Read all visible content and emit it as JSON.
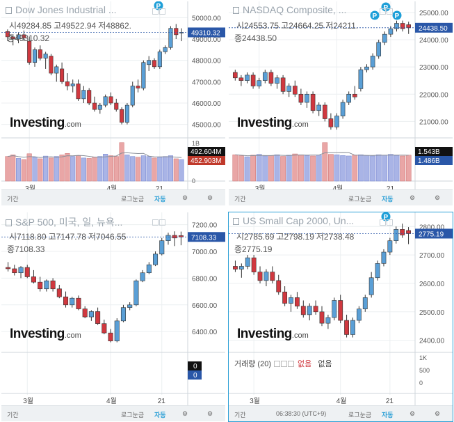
{
  "colors": {
    "up": "#5a9fd6",
    "down": "#d0383f",
    "grid": "#eceff1",
    "accent": "#2a9fd6",
    "price_line": "#2a57a8"
  },
  "footer_common": {
    "period": "기간",
    "log": "로그눈금",
    "auto": "자동",
    "gear_icon": "gear-icon"
  },
  "clock": "06:38:30 (UTC+9)",
  "charts": [
    {
      "key": "dow",
      "title": "Dow Jones Industrial ...",
      "ohlc": {
        "o_label": "시",
        "o": "49284.85",
        "h_label": "고",
        "h": "49522.94",
        "l_label": "저",
        "l": "48862.",
        "c_label": "종",
        "c": "49310.32"
      },
      "price_tag": "49310.32",
      "vol_tags": [
        {
          "text": "492.604M",
          "style": "dark"
        },
        {
          "text": "452.903M",
          "style": "red"
        }
      ],
      "vol_axis": [
        "1B",
        "0"
      ],
      "price_ticks": [
        "50000.00",
        "49000.00",
        "48000.00",
        "47000.00",
        "46000.00",
        "45000.00"
      ],
      "x_labels": [
        "3월",
        "4월",
        "21"
      ],
      "markers": [
        "P"
      ]
    },
    {
      "key": "nasdaq",
      "title": "NASDAQ Composite, ...",
      "ohlc": {
        "o_label": "시",
        "o": "24553.75",
        "h_label": "고",
        "h": "24664.25",
        "l_label": "저",
        "l": "24211.",
        "c_label": "종",
        "c": "24438.50"
      },
      "price_tag": "24438.50",
      "vol_tags": [
        {
          "text": "1.543B",
          "style": "dark"
        },
        {
          "text": "1.486B",
          "style": "blue"
        }
      ],
      "vol_axis": [],
      "price_ticks": [
        "25000.00",
        "24000.00",
        "23000.00",
        "22000.00",
        "21000.00"
      ],
      "x_labels": [
        "3월",
        "4월",
        "21"
      ],
      "markers": [
        "P",
        "P",
        "P"
      ]
    },
    {
      "key": "sp500",
      "title": "S&P 500, 미국, 일, 뉴욕...",
      "ohlc": {
        "o_label": "시",
        "o": "7118.80",
        "h_label": "고",
        "h": "7147.78",
        "l_label": "저",
        "l": "7046.55",
        "c_label": "종",
        "c": "7108.33"
      },
      "price_tag": "7108.33",
      "vol_tags": [
        {
          "text": "0",
          "style": "dark"
        },
        {
          "text": "0",
          "style": "blue"
        }
      ],
      "vol_axis": [],
      "price_ticks": [
        "7200.00",
        "7000.00",
        "6800.00",
        "6600.00",
        "6400.00"
      ],
      "x_labels": [
        "3월",
        "4월",
        "21"
      ],
      "markers": []
    },
    {
      "key": "smallcap",
      "title": "US Small Cap 2000, Un...",
      "ohlc": {
        "o_label": "시",
        "o": "2785.69",
        "h_label": "고",
        "h": "2798.19",
        "l_label": "저",
        "l": "2738.48",
        "c_label": "종",
        "c": "2775.19"
      },
      "price_tag": "2775.19",
      "vol_tags": [],
      "vol_axis": [
        "1K",
        "500",
        "0"
      ],
      "vol_legend": {
        "name": "거래량 (20)",
        "a": "없음",
        "b": "없음"
      },
      "price_ticks": [
        "2800.00",
        "2700.00",
        "2600.00",
        "2500.00",
        "2400.00"
      ],
      "x_labels": [
        "3월",
        "4월",
        "21"
      ],
      "markers": [
        "P"
      ]
    }
  ],
  "logo": {
    "main": "Investing",
    "suffix": ".com"
  },
  "chart_data": [
    {
      "type": "candlestick",
      "title": "Dow Jones Industrial ...",
      "ylim": [
        44500,
        50500
      ],
      "x_labels": [
        "3월",
        "4월",
        "21"
      ],
      "ohlc": [
        [
          49350,
          49450,
          48900,
          49100
        ],
        [
          49100,
          49200,
          48700,
          49000
        ],
        [
          49000,
          49300,
          48800,
          49200
        ],
        [
          49200,
          49400,
          48900,
          49050
        ],
        [
          48900,
          49100,
          47800,
          47900
        ],
        [
          47900,
          48600,
          47700,
          48500
        ],
        [
          48500,
          48700,
          48000,
          48100
        ],
        [
          48100,
          48400,
          47600,
          48300
        ],
        [
          48200,
          48300,
          47300,
          47400
        ],
        [
          47400,
          47800,
          47000,
          47700
        ],
        [
          47600,
          47900,
          46900,
          47000
        ],
        [
          47000,
          47400,
          46600,
          46800
        ],
        [
          46800,
          47100,
          46500,
          46900
        ],
        [
          46900,
          47100,
          46100,
          46200
        ],
        [
          46200,
          46800,
          46000,
          46600
        ],
        [
          46600,
          46700,
          45900,
          46000
        ],
        [
          46000,
          46300,
          45600,
          45700
        ],
        [
          45700,
          46000,
          45500,
          45900
        ],
        [
          45900,
          46400,
          45800,
          46300
        ],
        [
          46300,
          46500,
          45900,
          46000
        ],
        [
          46000,
          46200,
          45600,
          45700
        ],
        [
          45700,
          45800,
          45000,
          45100
        ],
        [
          45100,
          46000,
          45000,
          45900
        ],
        [
          45900,
          47000,
          45800,
          46800
        ],
        [
          46800,
          47100,
          46500,
          46700
        ],
        [
          46700,
          48000,
          46600,
          47900
        ],
        [
          47800,
          48200,
          47500,
          48000
        ],
        [
          48000,
          48100,
          47600,
          47700
        ],
        [
          47700,
          48500,
          47600,
          48400
        ],
        [
          48400,
          48700,
          48300,
          48600
        ],
        [
          48600,
          49600,
          48500,
          49500
        ],
        [
          49500,
          49700,
          49000,
          49200
        ],
        [
          49300,
          49500,
          48900,
          49310
        ]
      ],
      "volume": [
        640,
        680,
        590,
        560,
        710,
        620,
        580,
        650,
        600,
        640,
        680,
        720,
        640,
        660,
        600,
        590,
        620,
        640,
        700,
        660,
        640,
        1000,
        680,
        640,
        620,
        660,
        640,
        600,
        620,
        640,
        660,
        580,
        560
      ]
    },
    {
      "type": "candlestick",
      "title": "NASDAQ Composite, ...",
      "ylim": [
        20500,
        25200
      ],
      "x_labels": [
        "3월",
        "4월",
        "21"
      ],
      "ohlc": [
        [
          22800,
          22900,
          22500,
          22600
        ],
        [
          22600,
          22700,
          22300,
          22500
        ],
        [
          22500,
          22800,
          22400,
          22700
        ],
        [
          22700,
          22800,
          22200,
          22300
        ],
        [
          22300,
          22600,
          22200,
          22500
        ],
        [
          22500,
          22900,
          22400,
          22800
        ],
        [
          22800,
          22900,
          22300,
          22400
        ],
        [
          22400,
          22700,
          22200,
          22600
        ],
        [
          22600,
          22700,
          22000,
          22100
        ],
        [
          22100,
          22400,
          21900,
          22300
        ],
        [
          22300,
          22500,
          21900,
          22000
        ],
        [
          22000,
          22200,
          21600,
          21700
        ],
        [
          21700,
          22100,
          21500,
          22000
        ],
        [
          22000,
          22100,
          21300,
          21400
        ],
        [
          21400,
          21700,
          21200,
          21600
        ],
        [
          21600,
          21700,
          21000,
          21100
        ],
        [
          21100,
          21300,
          20700,
          20800
        ],
        [
          20800,
          21300,
          20700,
          21200
        ],
        [
          21200,
          21800,
          21100,
          21700
        ],
        [
          21700,
          22100,
          21600,
          22000
        ],
        [
          22000,
          22300,
          21800,
          21900
        ],
        [
          22200,
          23000,
          22100,
          22900
        ],
        [
          22900,
          23100,
          22800,
          23000
        ],
        [
          23000,
          23500,
          22900,
          23400
        ],
        [
          23400,
          24000,
          23300,
          23900
        ],
        [
          23900,
          24300,
          23800,
          24200
        ],
        [
          24200,
          24500,
          24100,
          24400
        ],
        [
          24400,
          24700,
          24300,
          24600
        ],
        [
          24600,
          24700,
          24300,
          24400
        ],
        [
          24550,
          24660,
          24210,
          24438
        ]
      ],
      "volume": [
        1300,
        1250,
        1200,
        1280,
        1320,
        1240,
        1260,
        1300,
        1220,
        1280,
        1340,
        1300,
        1260,
        1240,
        1280,
        1900,
        1320,
        1300,
        1260,
        1240,
        1280,
        1300,
        1260,
        1240,
        1300,
        1280,
        1320,
        1260,
        1240,
        1280
      ]
    },
    {
      "type": "candlestick",
      "title": "S&P 500, 미국, 일, 뉴욕...",
      "ylim": [
        6250,
        7250
      ],
      "x_labels": [
        "3월",
        "4월",
        "21"
      ],
      "ohlc": [
        [
          6880,
          6920,
          6850,
          6870
        ],
        [
          6870,
          6900,
          6820,
          6840
        ],
        [
          6840,
          6890,
          6800,
          6880
        ],
        [
          6880,
          6900,
          6800,
          6810
        ],
        [
          6810,
          6860,
          6760,
          6770
        ],
        [
          6770,
          6810,
          6700,
          6720
        ],
        [
          6720,
          6790,
          6700,
          6780
        ],
        [
          6780,
          6800,
          6700,
          6720
        ],
        [
          6720,
          6750,
          6650,
          6660
        ],
        [
          6660,
          6700,
          6580,
          6600
        ],
        [
          6600,
          6660,
          6580,
          6650
        ],
        [
          6650,
          6670,
          6560,
          6570
        ],
        [
          6570,
          6590,
          6500,
          6510
        ],
        [
          6510,
          6560,
          6480,
          6550
        ],
        [
          6550,
          6580,
          6450,
          6460
        ],
        [
          6460,
          6490,
          6380,
          6390
        ],
        [
          6390,
          6420,
          6320,
          6330
        ],
        [
          6330,
          6500,
          6320,
          6480
        ],
        [
          6480,
          6600,
          6470,
          6580
        ],
        [
          6580,
          6620,
          6560,
          6600
        ],
        [
          6600,
          6790,
          6590,
          6780
        ],
        [
          6780,
          6860,
          6770,
          6840
        ],
        [
          6840,
          6920,
          6830,
          6900
        ],
        [
          6900,
          7000,
          6890,
          6980
        ],
        [
          6980,
          7100,
          6970,
          7080
        ],
        [
          7080,
          7140,
          7050,
          7120
        ],
        [
          7120,
          7150,
          7040,
          7100
        ],
        [
          7118,
          7148,
          7046,
          7108
        ]
      ],
      "volume": []
    },
    {
      "type": "candlestick",
      "title": "US Small Cap 2000, Un...",
      "ylim": [
        2360,
        2830
      ],
      "x_labels": [
        "3월",
        "4월",
        "21"
      ],
      "ohlc": [
        [
          2660,
          2680,
          2640,
          2650
        ],
        [
          2650,
          2670,
          2620,
          2660
        ],
        [
          2660,
          2700,
          2650,
          2690
        ],
        [
          2690,
          2700,
          2630,
          2640
        ],
        [
          2640,
          2660,
          2600,
          2610
        ],
        [
          2610,
          2650,
          2590,
          2640
        ],
        [
          2640,
          2660,
          2600,
          2610
        ],
        [
          2610,
          2630,
          2560,
          2570
        ],
        [
          2570,
          2590,
          2520,
          2530
        ],
        [
          2530,
          2560,
          2500,
          2550
        ],
        [
          2550,
          2570,
          2510,
          2520
        ],
        [
          2520,
          2540,
          2480,
          2490
        ],
        [
          2490,
          2530,
          2470,
          2520
        ],
        [
          2520,
          2540,
          2490,
          2500
        ],
        [
          2500,
          2520,
          2450,
          2460
        ],
        [
          2460,
          2490,
          2440,
          2480
        ],
        [
          2480,
          2550,
          2470,
          2540
        ],
        [
          2540,
          2560,
          2460,
          2470
        ],
        [
          2470,
          2490,
          2410,
          2420
        ],
        [
          2420,
          2480,
          2410,
          2470
        ],
        [
          2470,
          2520,
          2460,
          2510
        ],
        [
          2510,
          2560,
          2500,
          2550
        ],
        [
          2560,
          2640,
          2550,
          2620
        ],
        [
          2620,
          2680,
          2610,
          2670
        ],
        [
          2670,
          2720,
          2660,
          2710
        ],
        [
          2710,
          2760,
          2700,
          2750
        ],
        [
          2750,
          2800,
          2740,
          2790
        ],
        [
          2790,
          2810,
          2760,
          2770
        ],
        [
          2786,
          2798,
          2738,
          2775
        ]
      ],
      "volume": []
    }
  ]
}
